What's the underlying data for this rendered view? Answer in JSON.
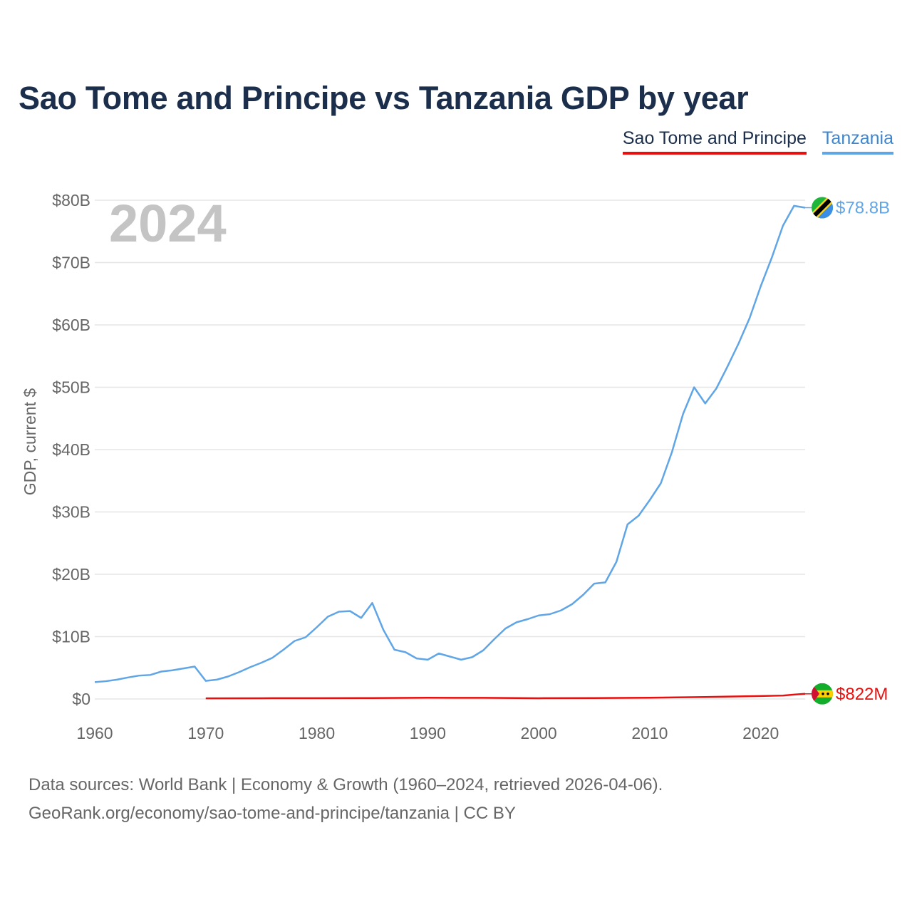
{
  "title": "Sao Tome and Principe vs Tanzania GDP by year",
  "legend": [
    {
      "label": "Sao Tome and Principe",
      "color": "#e8100f"
    },
    {
      "label": "Tanzania",
      "color": "#60a5e6"
    }
  ],
  "year_label": "2024",
  "footer": {
    "line1": "Data sources: World Bank | Economy & Growth (1960–2024, retrieved 2026-04-06).",
    "line2": "GeoRank.org/economy/sao-tome-and-principe/tanzania | CC BY"
  },
  "chart_data": {
    "type": "line",
    "title": "Sao Tome and Principe vs Tanzania GDP by year",
    "xlabel": "",
    "ylabel": "GDP, current $",
    "xlim": [
      1960,
      2024
    ],
    "ylim": [
      0,
      80
    ],
    "unit": "billion USD",
    "x_ticks": [
      1960,
      1970,
      1980,
      1990,
      2000,
      2010,
      2020
    ],
    "y_ticks": [
      0,
      10,
      20,
      30,
      40,
      50,
      60,
      70,
      80
    ],
    "y_tick_labels": [
      "$0",
      "$10B",
      "$20B",
      "$30B",
      "$40B",
      "$50B",
      "$60B",
      "$70B",
      "$80B"
    ],
    "series": [
      {
        "name": "Tanzania",
        "color": "#60a5e6",
        "end_label": "$78.8B",
        "x": [
          1960,
          1961,
          1962,
          1963,
          1964,
          1965,
          1966,
          1967,
          1968,
          1969,
          1970,
          1971,
          1972,
          1973,
          1974,
          1975,
          1976,
          1977,
          1978,
          1979,
          1980,
          1981,
          1982,
          1983,
          1984,
          1985,
          1986,
          1987,
          1988,
          1989,
          1990,
          1991,
          1992,
          1993,
          1994,
          1995,
          1996,
          1997,
          1998,
          1999,
          2000,
          2001,
          2002,
          2003,
          2004,
          2005,
          2006,
          2007,
          2008,
          2009,
          2010,
          2011,
          2012,
          2013,
          2014,
          2015,
          2016,
          2017,
          2018,
          2019,
          2020,
          2021,
          2022,
          2023,
          2024
        ],
        "values": [
          2.7,
          2.85,
          3.1,
          3.45,
          3.75,
          3.85,
          4.4,
          4.6,
          4.9,
          5.2,
          2.9,
          3.1,
          3.6,
          4.3,
          5.1,
          5.8,
          6.6,
          7.9,
          9.3,
          9.9,
          11.5,
          13.2,
          14.0,
          14.1,
          13.0,
          15.4,
          11.1,
          7.9,
          7.5,
          6.5,
          6.3,
          7.3,
          6.8,
          6.3,
          6.7,
          7.8,
          9.6,
          11.3,
          12.3,
          12.8,
          13.4,
          13.6,
          14.2,
          15.2,
          16.7,
          18.5,
          18.7,
          22.0,
          28.0,
          29.4,
          31.9,
          34.6,
          39.6,
          45.7,
          50.0,
          47.4,
          49.8,
          53.3,
          57.0,
          61.1,
          66.2,
          70.8,
          75.9,
          79.1,
          78.8
        ]
      },
      {
        "name": "Sao Tome and Principe",
        "color": "#e8100f",
        "end_label": "$822M",
        "x": [
          1970,
          1975,
          1980,
          1985,
          1990,
          1995,
          2000,
          2005,
          2010,
          2015,
          2020,
          2022,
          2023,
          2024
        ],
        "values": [
          0.1,
          0.12,
          0.13,
          0.15,
          0.2,
          0.18,
          0.12,
          0.15,
          0.2,
          0.32,
          0.47,
          0.55,
          0.7,
          0.822
        ]
      }
    ]
  }
}
